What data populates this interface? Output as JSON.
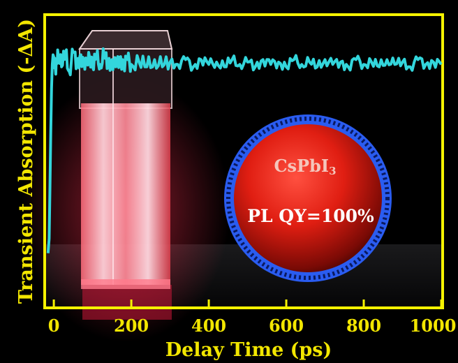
{
  "chart_data": {
    "type": "line",
    "xlabel": "Delay Time (ps)",
    "ylabel": "Transient Absorption (-ΔA)",
    "xlim": [
      -20,
      1000
    ],
    "ylim": [
      0,
      1.2
    ],
    "xticks": [
      0,
      200,
      400,
      600,
      800,
      1000
    ],
    "xtick_labels": [
      "0",
      "200",
      "400",
      "600",
      "800",
      "1000"
    ],
    "yticks_shown": false,
    "grid": false,
    "legend": "none",
    "series": [
      {
        "color": "#33d6dc",
        "x": [
          -15,
          -12,
          -10,
          -8,
          -6,
          -4,
          -2,
          0,
          5,
          10,
          20,
          30,
          40,
          50,
          60,
          70,
          80,
          90,
          100,
          110,
          120,
          130,
          140,
          150,
          160,
          170,
          180,
          190,
          200,
          220,
          240,
          260,
          280,
          300,
          320,
          340,
          360,
          380,
          400,
          420,
          440,
          460,
          480,
          500,
          520,
          540,
          560,
          580,
          600,
          620,
          640,
          660,
          680,
          700,
          720,
          740,
          760,
          780,
          800,
          820,
          840,
          860,
          880,
          900,
          920,
          940,
          960,
          980,
          1000
        ],
        "y": [
          0.22,
          0.28,
          0.48,
          0.72,
          0.9,
          1.0,
          1.04,
          1.03,
          0.96,
          1.06,
          0.99,
          1.05,
          0.97,
          1.05,
          1.0,
          1.04,
          0.98,
          1.05,
          0.99,
          1.03,
          1.0,
          1.04,
          0.99,
          1.02,
          0.99,
          1.03,
          1.0,
          1.02,
          1.0,
          1.01,
          0.99,
          1.02,
          0.99,
          1.01,
          1.0,
          1.02,
          0.99,
          1.02,
          1.0,
          1.01,
          0.99,
          1.02,
          1.0,
          1.01,
          0.99,
          1.02,
          1.0,
          1.01,
          0.99,
          1.02,
          1.0,
          1.01,
          0.99,
          1.02,
          1.0,
          1.01,
          0.99,
          1.02,
          1.0,
          1.01,
          0.99,
          1.02,
          1.0,
          1.01,
          0.99,
          1.02,
          1.0,
          1.01,
          1.0
        ]
      }
    ]
  },
  "inset": {
    "compound": "CsPbI",
    "compound_subscript": "3",
    "qy_label": "PL QY=100%"
  },
  "colors": {
    "frame": "#f5f200",
    "axis_text": "#f2e600",
    "trace": "#33d6dc",
    "sphere": "#e01e12",
    "shell": "#2a5cf0",
    "inset_text": "#f4c6bc"
  }
}
